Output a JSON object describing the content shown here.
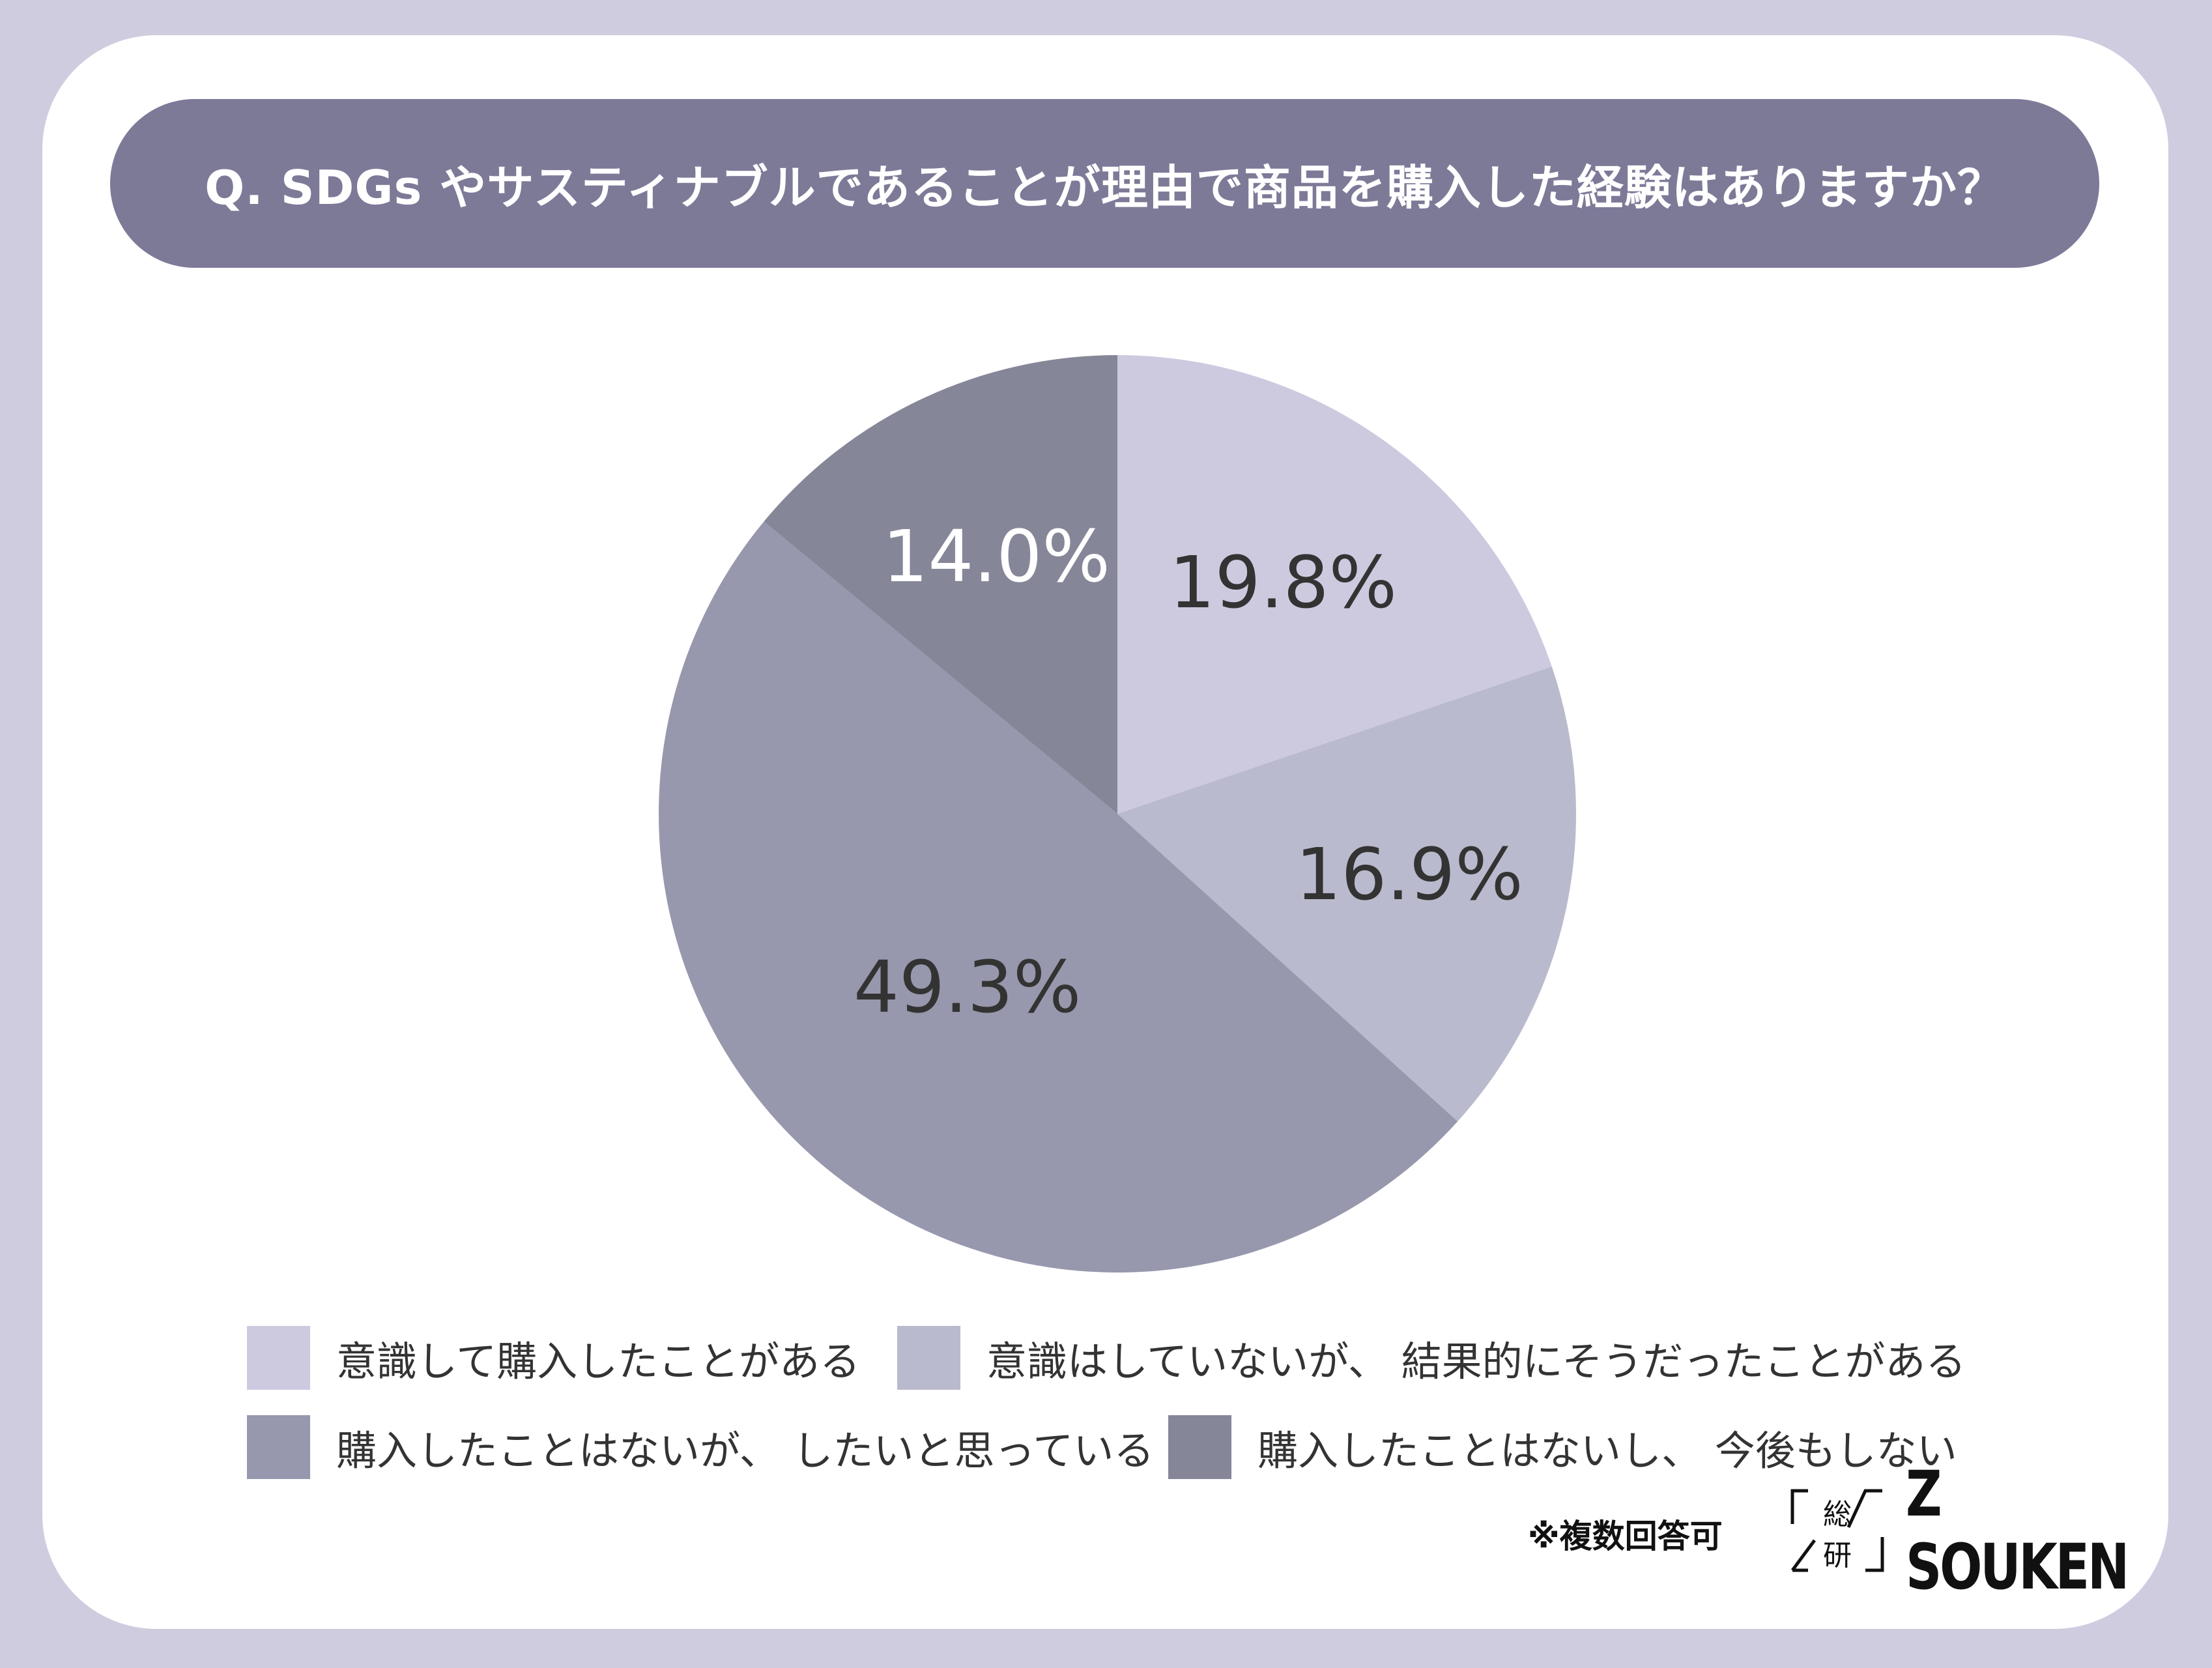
{
  "title": "Q. SDGs やサスティナブルであることが理由で商品を購入した経験はありますか？",
  "chart_data": {
    "type": "pie",
    "start": "top",
    "direction": "clockwise",
    "slices": [
      {
        "name": "意識して購入したことがある",
        "value": 19.8,
        "label": "19.8%",
        "color": "#cdcae0",
        "label_color": "#333333"
      },
      {
        "name": "意識はしていないが、 結果的にそうだったことがある",
        "value": 16.9,
        "label": "16.9%",
        "color": "#babace",
        "label_color": "#333333"
      },
      {
        "name": "購入したことはないが、 したいと思っている",
        "value": 49.3,
        "label": "49.3%",
        "color": "#9797ad",
        "label_color": "#333333"
      },
      {
        "name": "購入したことはないし、 今後もしない",
        "value": 14.0,
        "label": "14.0%",
        "color": "#868699",
        "label_color": "#ffffff"
      }
    ],
    "legend": "bottom"
  },
  "note": "※複数回答可",
  "logo": {
    "mark": "「総研」",
    "brand": "Z SOUKEN"
  },
  "colors": {
    "background": "#cfcce0",
    "title_bar": "#7d7a98"
  }
}
